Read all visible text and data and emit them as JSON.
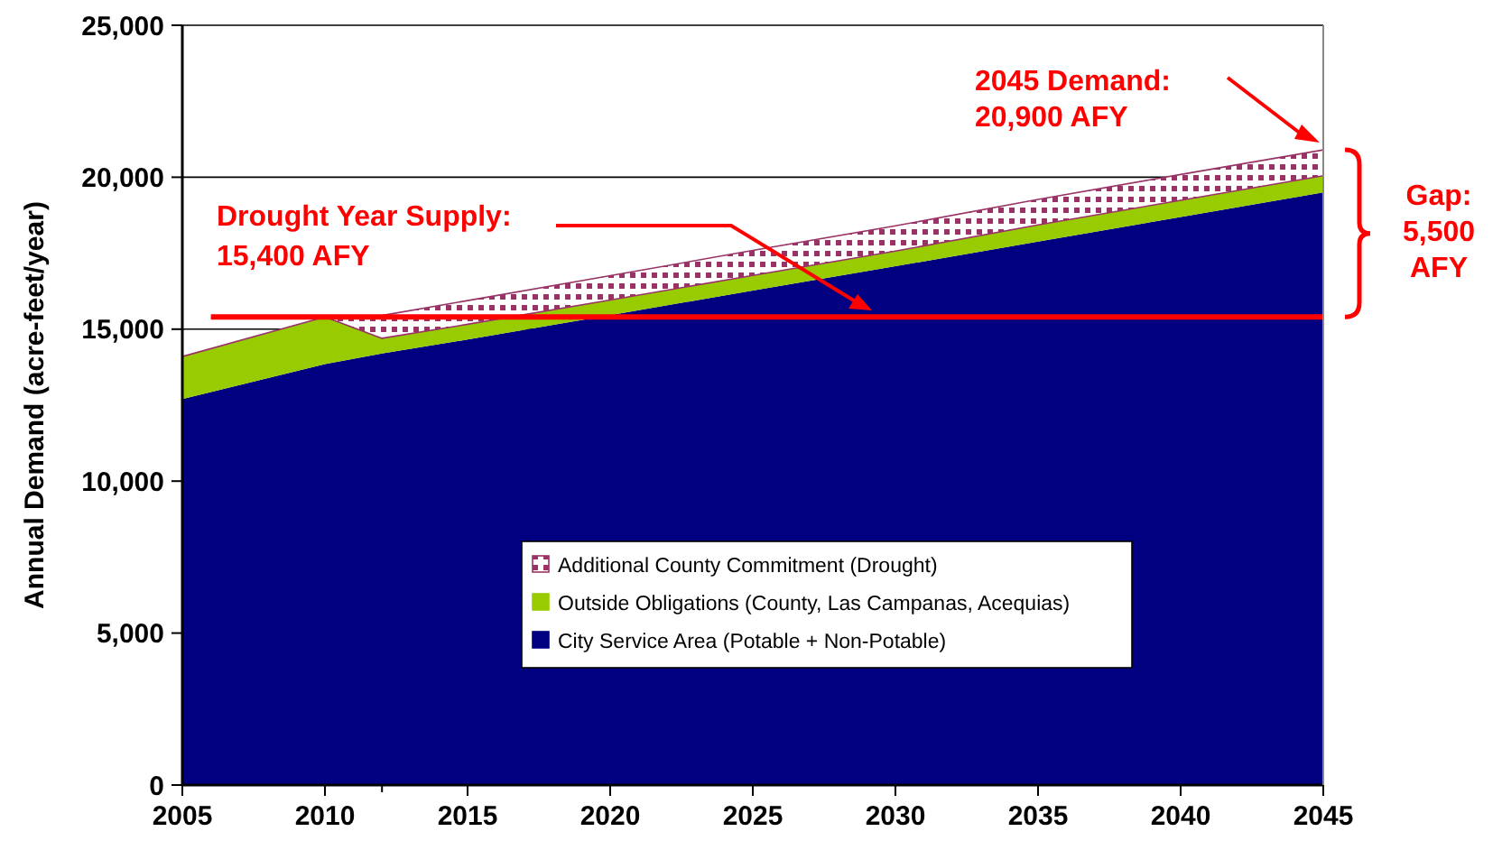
{
  "chart_data": {
    "type": "area",
    "stacked": true,
    "ylabel": "Annual Demand (acre-feet/year)",
    "x": [
      2005,
      2010,
      2012,
      2015,
      2020,
      2025,
      2030,
      2035,
      2040,
      2045
    ],
    "series": [
      {
        "name": "City Service Area (Potable + Non-Potable)",
        "color": "#000080",
        "values": [
          12700,
          13850,
          14200,
          14660,
          15460,
          16270,
          17070,
          17880,
          18690,
          19500
        ]
      },
      {
        "name": "Outside Obligations (County, Las Campanas, Acequias)",
        "color": "#99cc00",
        "values": [
          1400,
          1550,
          500,
          500,
          500,
          500,
          500,
          550,
          550,
          550
        ]
      },
      {
        "name": "Additional County Commitment (Drought)",
        "color": "#993366",
        "values": [
          0,
          0,
          750,
          780,
          800,
          820,
          830,
          840,
          850,
          850
        ]
      }
    ],
    "xlim": [
      2005,
      2045
    ],
    "xticks": [
      2005,
      2010,
      2015,
      2020,
      2025,
      2030,
      2035,
      2040,
      2045
    ],
    "ylim": [
      0,
      25000
    ],
    "yticks": [
      {
        "value": 0,
        "label": "0"
      },
      {
        "value": 5000,
        "label": "5,000"
      },
      {
        "value": 10000,
        "label": "10,000"
      },
      {
        "value": 15000,
        "label": "15,000"
      },
      {
        "value": 20000,
        "label": "20,000"
      },
      {
        "value": 25000,
        "label": "25,000"
      }
    ],
    "grid": "y",
    "legend": "bottom",
    "ref_lines": [
      {
        "axis": "y",
        "value": 15400,
        "color": "#ff0000"
      }
    ],
    "annotations": [
      "2045 Demand:\n20,900 AFY",
      "Drought Year Supply:\n15,400 AFY",
      "Gap:\n5,500\nAFY"
    ]
  }
}
